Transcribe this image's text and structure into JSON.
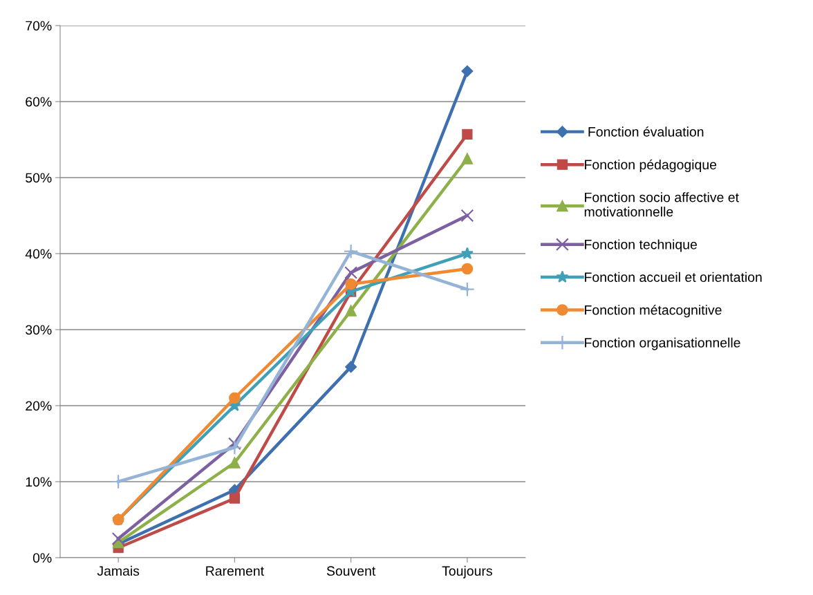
{
  "chart_data": {
    "type": "line",
    "categories": [
      "Jamais",
      "Rarement",
      "Souvent",
      "Toujours"
    ],
    "ylim": [
      0,
      0.7
    ],
    "yticks": [
      {
        "value": 0,
        "label": "0%"
      },
      {
        "value": 0.1,
        "label": "10%"
      },
      {
        "value": 0.2,
        "label": "20%"
      },
      {
        "value": 0.3,
        "label": "30%"
      },
      {
        "value": 0.4,
        "label": "40%"
      },
      {
        "value": 0.5,
        "label": "50%"
      },
      {
        "value": 0.6,
        "label": "60%"
      },
      {
        "value": 0.7,
        "label": "70%"
      }
    ],
    "grid": "y",
    "legend": "right",
    "series": [
      {
        "name": " Fonction évaluation",
        "color": "#3e70b0",
        "marker": "diamond",
        "values": [
          0.018,
          0.089,
          0.251,
          0.64
        ]
      },
      {
        "name": "Fonction pédagogique",
        "color": "#be4b48",
        "marker": "square",
        "values": [
          0.013,
          0.078,
          0.35,
          0.557
        ]
      },
      {
        "name": "Fonction socio affective et\nmotivationnelle",
        "color": "#8db049",
        "marker": "triangle",
        "values": [
          0.02,
          0.125,
          0.325,
          0.525
        ]
      },
      {
        "name": "Fonction technique",
        "color": "#7d60a0",
        "marker": "cross",
        "values": [
          0.025,
          0.15,
          0.375,
          0.45
        ]
      },
      {
        "name": "Fonction accueil et orientation",
        "color": "#3fa0b8",
        "marker": "star",
        "values": [
          0.05,
          0.2,
          0.35,
          0.4
        ]
      },
      {
        "name": "Fonction métacognitive",
        "color": "#f08a32",
        "marker": "circle",
        "values": [
          0.05,
          0.21,
          0.36,
          0.38
        ]
      },
      {
        "name": "Fonction organisationnelle",
        "color": "#95b3d7",
        "marker": "plus",
        "values": [
          0.1,
          0.145,
          0.403,
          0.353
        ]
      }
    ]
  }
}
